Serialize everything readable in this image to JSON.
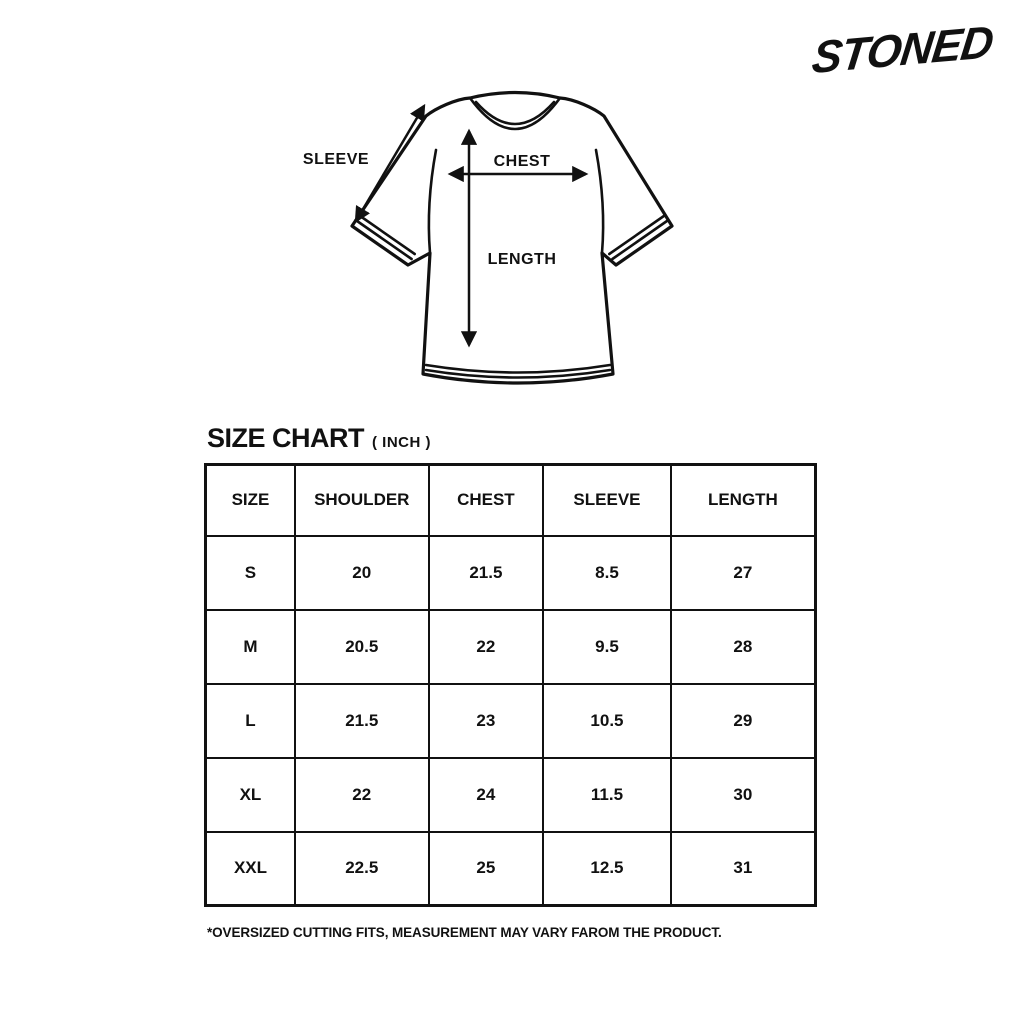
{
  "page": {
    "background": "#ffffff",
    "ink_color": "#111111"
  },
  "brand": {
    "logo_text": "STONED"
  },
  "diagram": {
    "sleeve_label": "SLEEVE",
    "chest_label": "CHEST",
    "length_label": "LENGTH"
  },
  "size_chart": {
    "title": "SIZE CHART",
    "unit_label": "( INCH )",
    "columns": [
      "SIZE",
      "SHOULDER",
      "CHEST",
      "SLEEVE",
      "LENGTH"
    ],
    "rows": [
      [
        "S",
        "20",
        "21.5",
        "8.5",
        "27"
      ],
      [
        "M",
        "20.5",
        "22",
        "9.5",
        "28"
      ],
      [
        "L",
        "21.5",
        "23",
        "10.5",
        "29"
      ],
      [
        "XL",
        "22",
        "24",
        "11.5",
        "30"
      ],
      [
        "XXL",
        "22.5",
        "25",
        "12.5",
        "31"
      ]
    ],
    "footnote": "*OVERSIZED CUTTING FITS, MEASUREMENT MAY VARY FAROM THE PRODUCT."
  },
  "chart_data": {
    "type": "table",
    "title": "SIZE CHART ( INCH )",
    "units": "inch",
    "columns": [
      "SIZE",
      "SHOULDER",
      "CHEST",
      "SLEEVE",
      "LENGTH"
    ],
    "rows": [
      [
        "S",
        20,
        21.5,
        8.5,
        27
      ],
      [
        "M",
        20.5,
        22,
        9.5,
        28
      ],
      [
        "L",
        21.5,
        23,
        10.5,
        29
      ],
      [
        "XL",
        22,
        24,
        11.5,
        30
      ],
      [
        "XXL",
        22.5,
        25,
        12.5,
        31
      ]
    ],
    "notes": "*OVERSIZED CUTTING FITS, MEASUREMENT MAY VARY FAROM THE PRODUCT."
  }
}
